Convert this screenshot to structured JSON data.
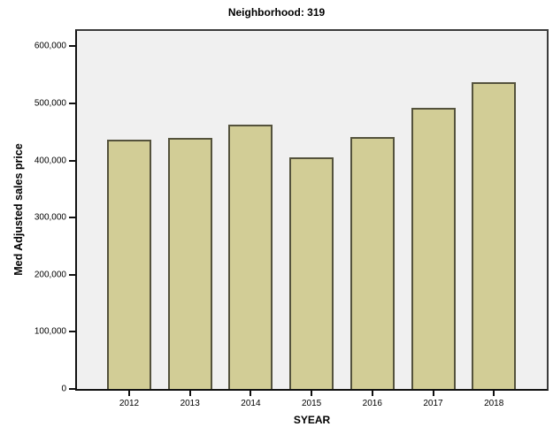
{
  "chart_data": {
    "type": "bar",
    "title": "Neighborhood: 319",
    "xlabel": "SYEAR",
    "ylabel": "Med Adjusted sales price",
    "categories": [
      "2012",
      "2013",
      "2014",
      "2015",
      "2016",
      "2017",
      "2018"
    ],
    "values": [
      437000,
      439000,
      463000,
      405000,
      442000,
      492000,
      538000
    ],
    "ylim": [
      0,
      627000
    ],
    "yticks": [
      0,
      100000,
      200000,
      300000,
      400000,
      500000,
      600000
    ],
    "ytick_labels": [
      "0",
      "100,000",
      "200,000",
      "300,000",
      "400,000",
      "500,000",
      "600,000"
    ],
    "grid": false,
    "legend": "none",
    "colors": {
      "bar_fill": "#d2cd96",
      "bar_border": "#54523c",
      "plot_background": "#f0f0f0",
      "frame": "#3c3c3c",
      "text": "#000000"
    }
  }
}
